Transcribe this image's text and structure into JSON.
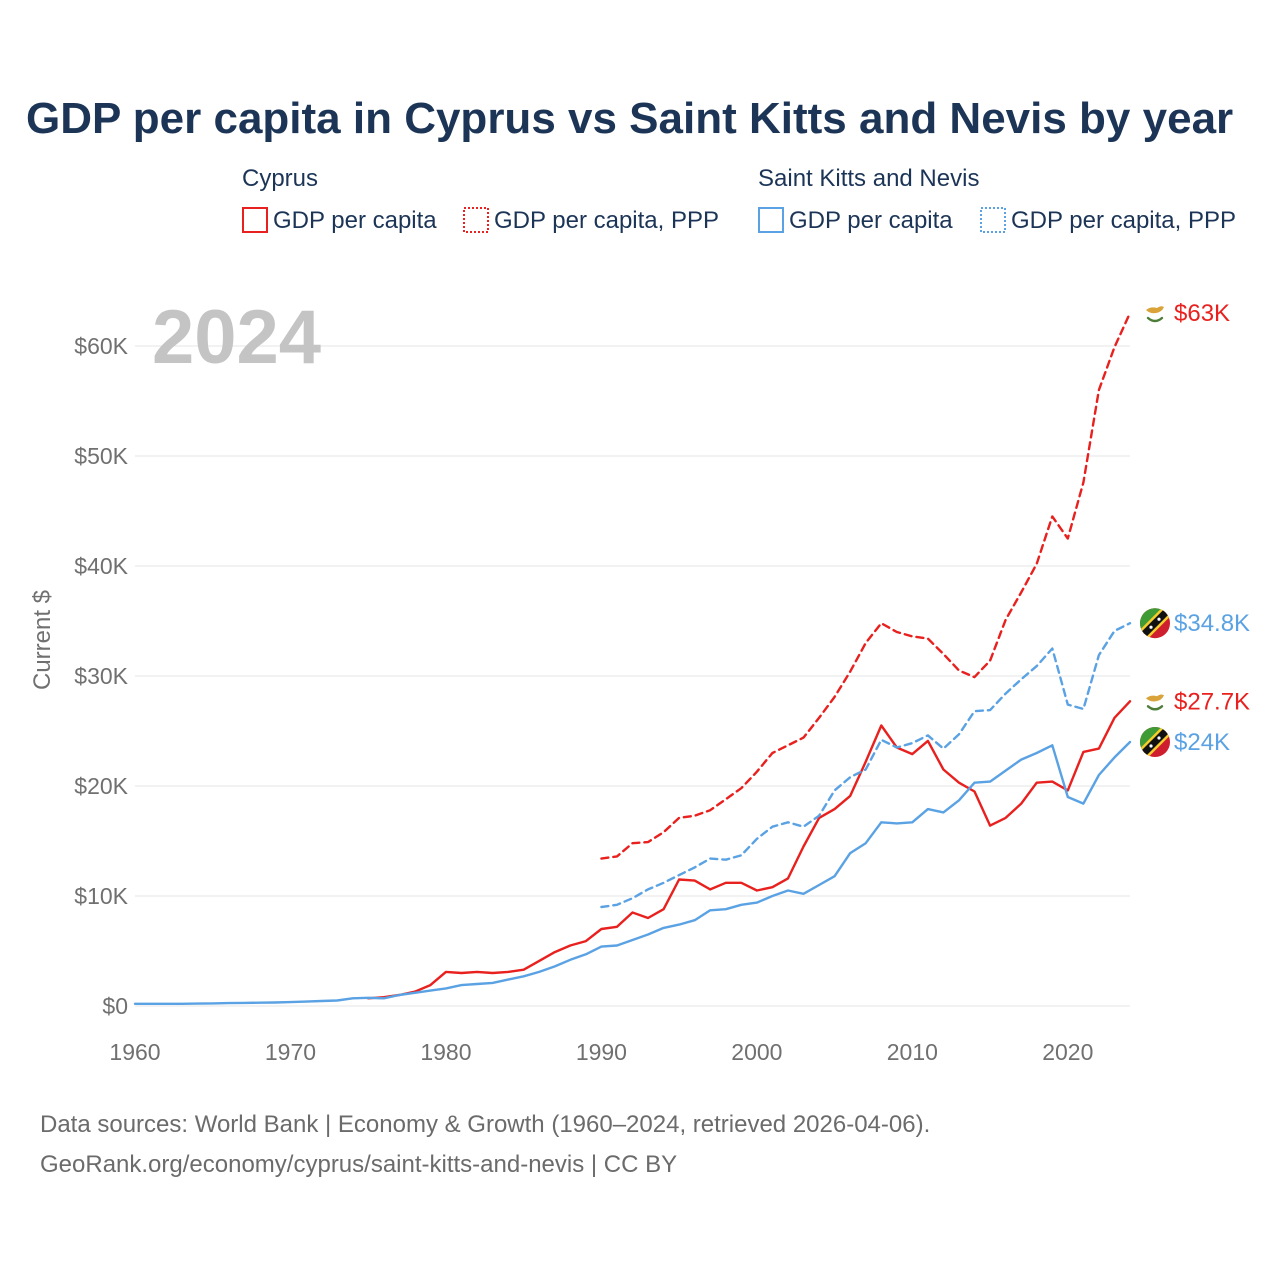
{
  "chart_data": {
    "type": "line",
    "title": "GDP per capita in Cyprus vs Saint Kitts and Nevis by year",
    "ylabel": "Current $",
    "xlabel": "",
    "year_label": "2024",
    "xlim": [
      1960,
      2024
    ],
    "ylim": [
      0,
      63000
    ],
    "x_ticks": [
      1960,
      1970,
      1980,
      1990,
      2000,
      2010,
      2020
    ],
    "x_tick_labels": [
      "1960",
      "1970",
      "1980",
      "1990",
      "2000",
      "2010",
      "2020"
    ],
    "y_ticks": [
      0,
      10000,
      20000,
      30000,
      40000,
      50000,
      60000
    ],
    "y_tick_labels": [
      "$0",
      "$10K",
      "$20K",
      "$30K",
      "$40K",
      "$50K",
      "$60K"
    ],
    "grid": true,
    "legend": {
      "groups": [
        {
          "name": "Cyprus",
          "color": "#e8201e",
          "items": [
            {
              "label": "GDP per capita",
              "style": "solid"
            },
            {
              "label": "GDP per capita, PPP",
              "style": "dotted"
            }
          ]
        },
        {
          "name": "Saint Kitts and Nevis",
          "color": "#5aa2e3",
          "items": [
            {
              "label": "GDP per capita",
              "style": "solid"
            },
            {
              "label": "GDP per capita, PPP",
              "style": "dotted"
            }
          ]
        }
      ]
    },
    "series": [
      {
        "name": "Cyprus GDP per capita",
        "country": "Cyprus",
        "color": "#e8201e",
        "dash": "solid",
        "end_label": "$27.7K",
        "end_flag": "cyprus",
        "x": [
          1975,
          1976,
          1977,
          1978,
          1979,
          1980,
          1981,
          1982,
          1983,
          1984,
          1985,
          1986,
          1987,
          1988,
          1989,
          1990,
          1991,
          1992,
          1993,
          1994,
          1995,
          1996,
          1997,
          1998,
          1999,
          2000,
          2001,
          2002,
          2003,
          2004,
          2005,
          2006,
          2007,
          2008,
          2009,
          2010,
          2011,
          2012,
          2013,
          2014,
          2015,
          2016,
          2017,
          2018,
          2019,
          2020,
          2021,
          2022,
          2023,
          2024
        ],
        "values": [
          700,
          800,
          1000,
          1300,
          1900,
          3100,
          3000,
          3100,
          3000,
          3100,
          3300,
          4100,
          4900,
          5500,
          5900,
          7000,
          7200,
          8500,
          8000,
          8800,
          11500,
          11400,
          10600,
          11200,
          11200,
          10500,
          10800,
          11600,
          14500,
          17100,
          17900,
          19100,
          22200,
          25500,
          23500,
          22900,
          24100,
          21500,
          20300,
          19500,
          16400,
          17100,
          18400,
          20300,
          20400,
          19600,
          23100,
          23400,
          26200,
          27700
        ]
      },
      {
        "name": "Cyprus GDP per capita, PPP",
        "country": "Cyprus",
        "color": "#e8201e",
        "dash": "dashed",
        "end_label": "$63K",
        "end_flag": "cyprus",
        "x": [
          1990,
          1991,
          1992,
          1993,
          1994,
          1995,
          1996,
          1997,
          1998,
          1999,
          2000,
          2001,
          2002,
          2003,
          2004,
          2005,
          2006,
          2007,
          2008,
          2009,
          2010,
          2011,
          2012,
          2013,
          2014,
          2015,
          2016,
          2017,
          2018,
          2019,
          2020,
          2021,
          2022,
          2023,
          2024
        ],
        "values": [
          13400,
          13600,
          14800,
          14900,
          15800,
          17100,
          17300,
          17800,
          18800,
          19800,
          21300,
          23000,
          23700,
          24400,
          26200,
          28100,
          30400,
          33000,
          34800,
          34000,
          33600,
          33400,
          32000,
          30500,
          29900,
          31400,
          35100,
          37600,
          40200,
          44500,
          42500,
          47600,
          56000,
          59900,
          63000
        ]
      },
      {
        "name": "Saint Kitts and Nevis GDP per capita",
        "country": "Saint Kitts and Nevis",
        "color": "#5aa2e3",
        "dash": "solid",
        "end_label": "$24K",
        "end_flag": "saint-kitts-and-nevis",
        "x": [
          1960,
          1961,
          1962,
          1963,
          1964,
          1965,
          1966,
          1967,
          1968,
          1969,
          1970,
          1971,
          1972,
          1973,
          1974,
          1975,
          1976,
          1977,
          1978,
          1979,
          1980,
          1981,
          1982,
          1983,
          1984,
          1985,
          1986,
          1987,
          1988,
          1989,
          1990,
          1991,
          1992,
          1993,
          1994,
          1995,
          1996,
          1997,
          1998,
          1999,
          2000,
          2001,
          2002,
          2003,
          2004,
          2005,
          2006,
          2007,
          2008,
          2009,
          2010,
          2011,
          2012,
          2013,
          2014,
          2015,
          2016,
          2017,
          2018,
          2019,
          2020,
          2021,
          2022,
          2023,
          2024
        ],
        "values": [
          200,
          200,
          200,
          200,
          220,
          240,
          260,
          280,
          300,
          320,
          350,
          400,
          450,
          500,
          700,
          750,
          700,
          1000,
          1200,
          1400,
          1600,
          1900,
          2000,
          2100,
          2400,
          2700,
          3100,
          3600,
          4200,
          4700,
          5400,
          5500,
          6000,
          6500,
          7100,
          7400,
          7800,
          8700,
          8800,
          9200,
          9400,
          10000,
          10500,
          10200,
          11000,
          11800,
          13900,
          14800,
          16700,
          16600,
          16700,
          17900,
          17600,
          18700,
          20300,
          20400,
          21400,
          22400,
          23000,
          23700,
          19000,
          18400,
          21000,
          22600,
          24000
        ]
      },
      {
        "name": "Saint Kitts and Nevis GDP per capita, PPP",
        "country": "Saint Kitts and Nevis",
        "color": "#5aa2e3",
        "dash": "dashed",
        "end_label": "$34.8K",
        "end_flag": "saint-kitts-and-nevis",
        "x": [
          1990,
          1991,
          1992,
          1993,
          1994,
          1995,
          1996,
          1997,
          1998,
          1999,
          2000,
          2001,
          2002,
          2003,
          2004,
          2005,
          2006,
          2007,
          2008,
          2009,
          2010,
          2011,
          2012,
          2013,
          2014,
          2015,
          2016,
          2017,
          2018,
          2019,
          2020,
          2021,
          2022,
          2023,
          2024
        ],
        "values": [
          9000,
          9200,
          9800,
          10600,
          11200,
          11900,
          12600,
          13400,
          13300,
          13700,
          15200,
          16300,
          16700,
          16300,
          17300,
          19600,
          20800,
          21500,
          24200,
          23500,
          23900,
          24600,
          23400,
          24700,
          26800,
          26900,
          28400,
          29700,
          30900,
          32500,
          27400,
          27000,
          31900,
          34100,
          34800
        ]
      }
    ],
    "footer": {
      "line1": "Data sources: World Bank | Economy & Growth (1960–2024, retrieved 2026-04-06).",
      "line2": "GeoRank.org/economy/cyprus/saint-kitts-and-nevis | CC BY"
    }
  }
}
